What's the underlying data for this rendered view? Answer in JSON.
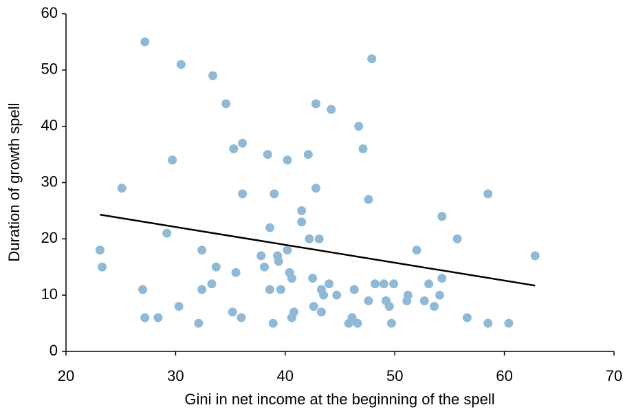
{
  "chart_data": {
    "type": "scatter",
    "x_label": "Gini in net income at the beginning of the spell",
    "y_label": "Duration of growth spell",
    "xlim": [
      20,
      70
    ],
    "xticks": [
      20,
      30,
      40,
      50,
      60,
      70
    ],
    "ylim": [
      0,
      60
    ],
    "yticks": [
      0,
      10,
      20,
      30,
      40,
      50,
      60
    ],
    "grid": false,
    "color": "#8fb9d6",
    "x": [
      23.1,
      23.3,
      25.1,
      27.2,
      27.0,
      27.2,
      28.4,
      29.2,
      29.7,
      30.3,
      30.5,
      32.1,
      32.4,
      32.4,
      33.4,
      33.3,
      33.7,
      34.6,
      35.3,
      35.2,
      35.5,
      36.1,
      36.1,
      36.0,
      37.8,
      38.1,
      38.4,
      38.6,
      38.6,
      38.9,
      39.0,
      39.3,
      39.4,
      39.6,
      40.2,
      40.2,
      40.4,
      40.6,
      40.6,
      40.8,
      41.5,
      41.5,
      42.1,
      42.2,
      42.5,
      42.6,
      42.8,
      42.8,
      43.1,
      43.3,
      43.5,
      43.3,
      44.0,
      44.2,
      44.7,
      45.8,
      46.1,
      46.3,
      46.6,
      46.7,
      47.1,
      47.6,
      47.6,
      47.9,
      48.2,
      49.0,
      49.2,
      49.5,
      49.7,
      49.9,
      51.1,
      51.2,
      52.0,
      52.7,
      53.1,
      53.6,
      54.1,
      54.3,
      54.3,
      55.7,
      56.6,
      58.5,
      58.5,
      60.4,
      62.8
    ],
    "y": [
      18,
      15,
      29,
      55,
      11,
      6,
      6,
      21,
      34,
      8,
      51,
      5,
      18,
      11,
      49,
      12,
      15,
      44,
      36,
      7,
      14,
      37,
      28,
      6,
      17,
      15,
      35,
      22,
      11,
      5,
      28,
      17,
      16,
      11,
      34,
      18,
      14,
      13,
      6,
      7,
      25,
      23,
      35,
      20,
      13,
      8,
      44,
      29,
      20,
      11,
      10,
      7,
      12,
      43,
      10,
      5,
      6,
      11,
      5,
      40,
      36,
      27,
      9,
      52,
      12,
      12,
      9,
      8,
      5,
      12,
      9,
      10,
      18,
      9,
      12,
      8,
      10,
      24,
      13,
      20,
      6,
      28,
      5,
      5,
      17
    ],
    "trend_line": {
      "x": [
        23.1,
        62.8
      ],
      "y": [
        24.3,
        11.7
      ],
      "color": "#000000"
    }
  }
}
